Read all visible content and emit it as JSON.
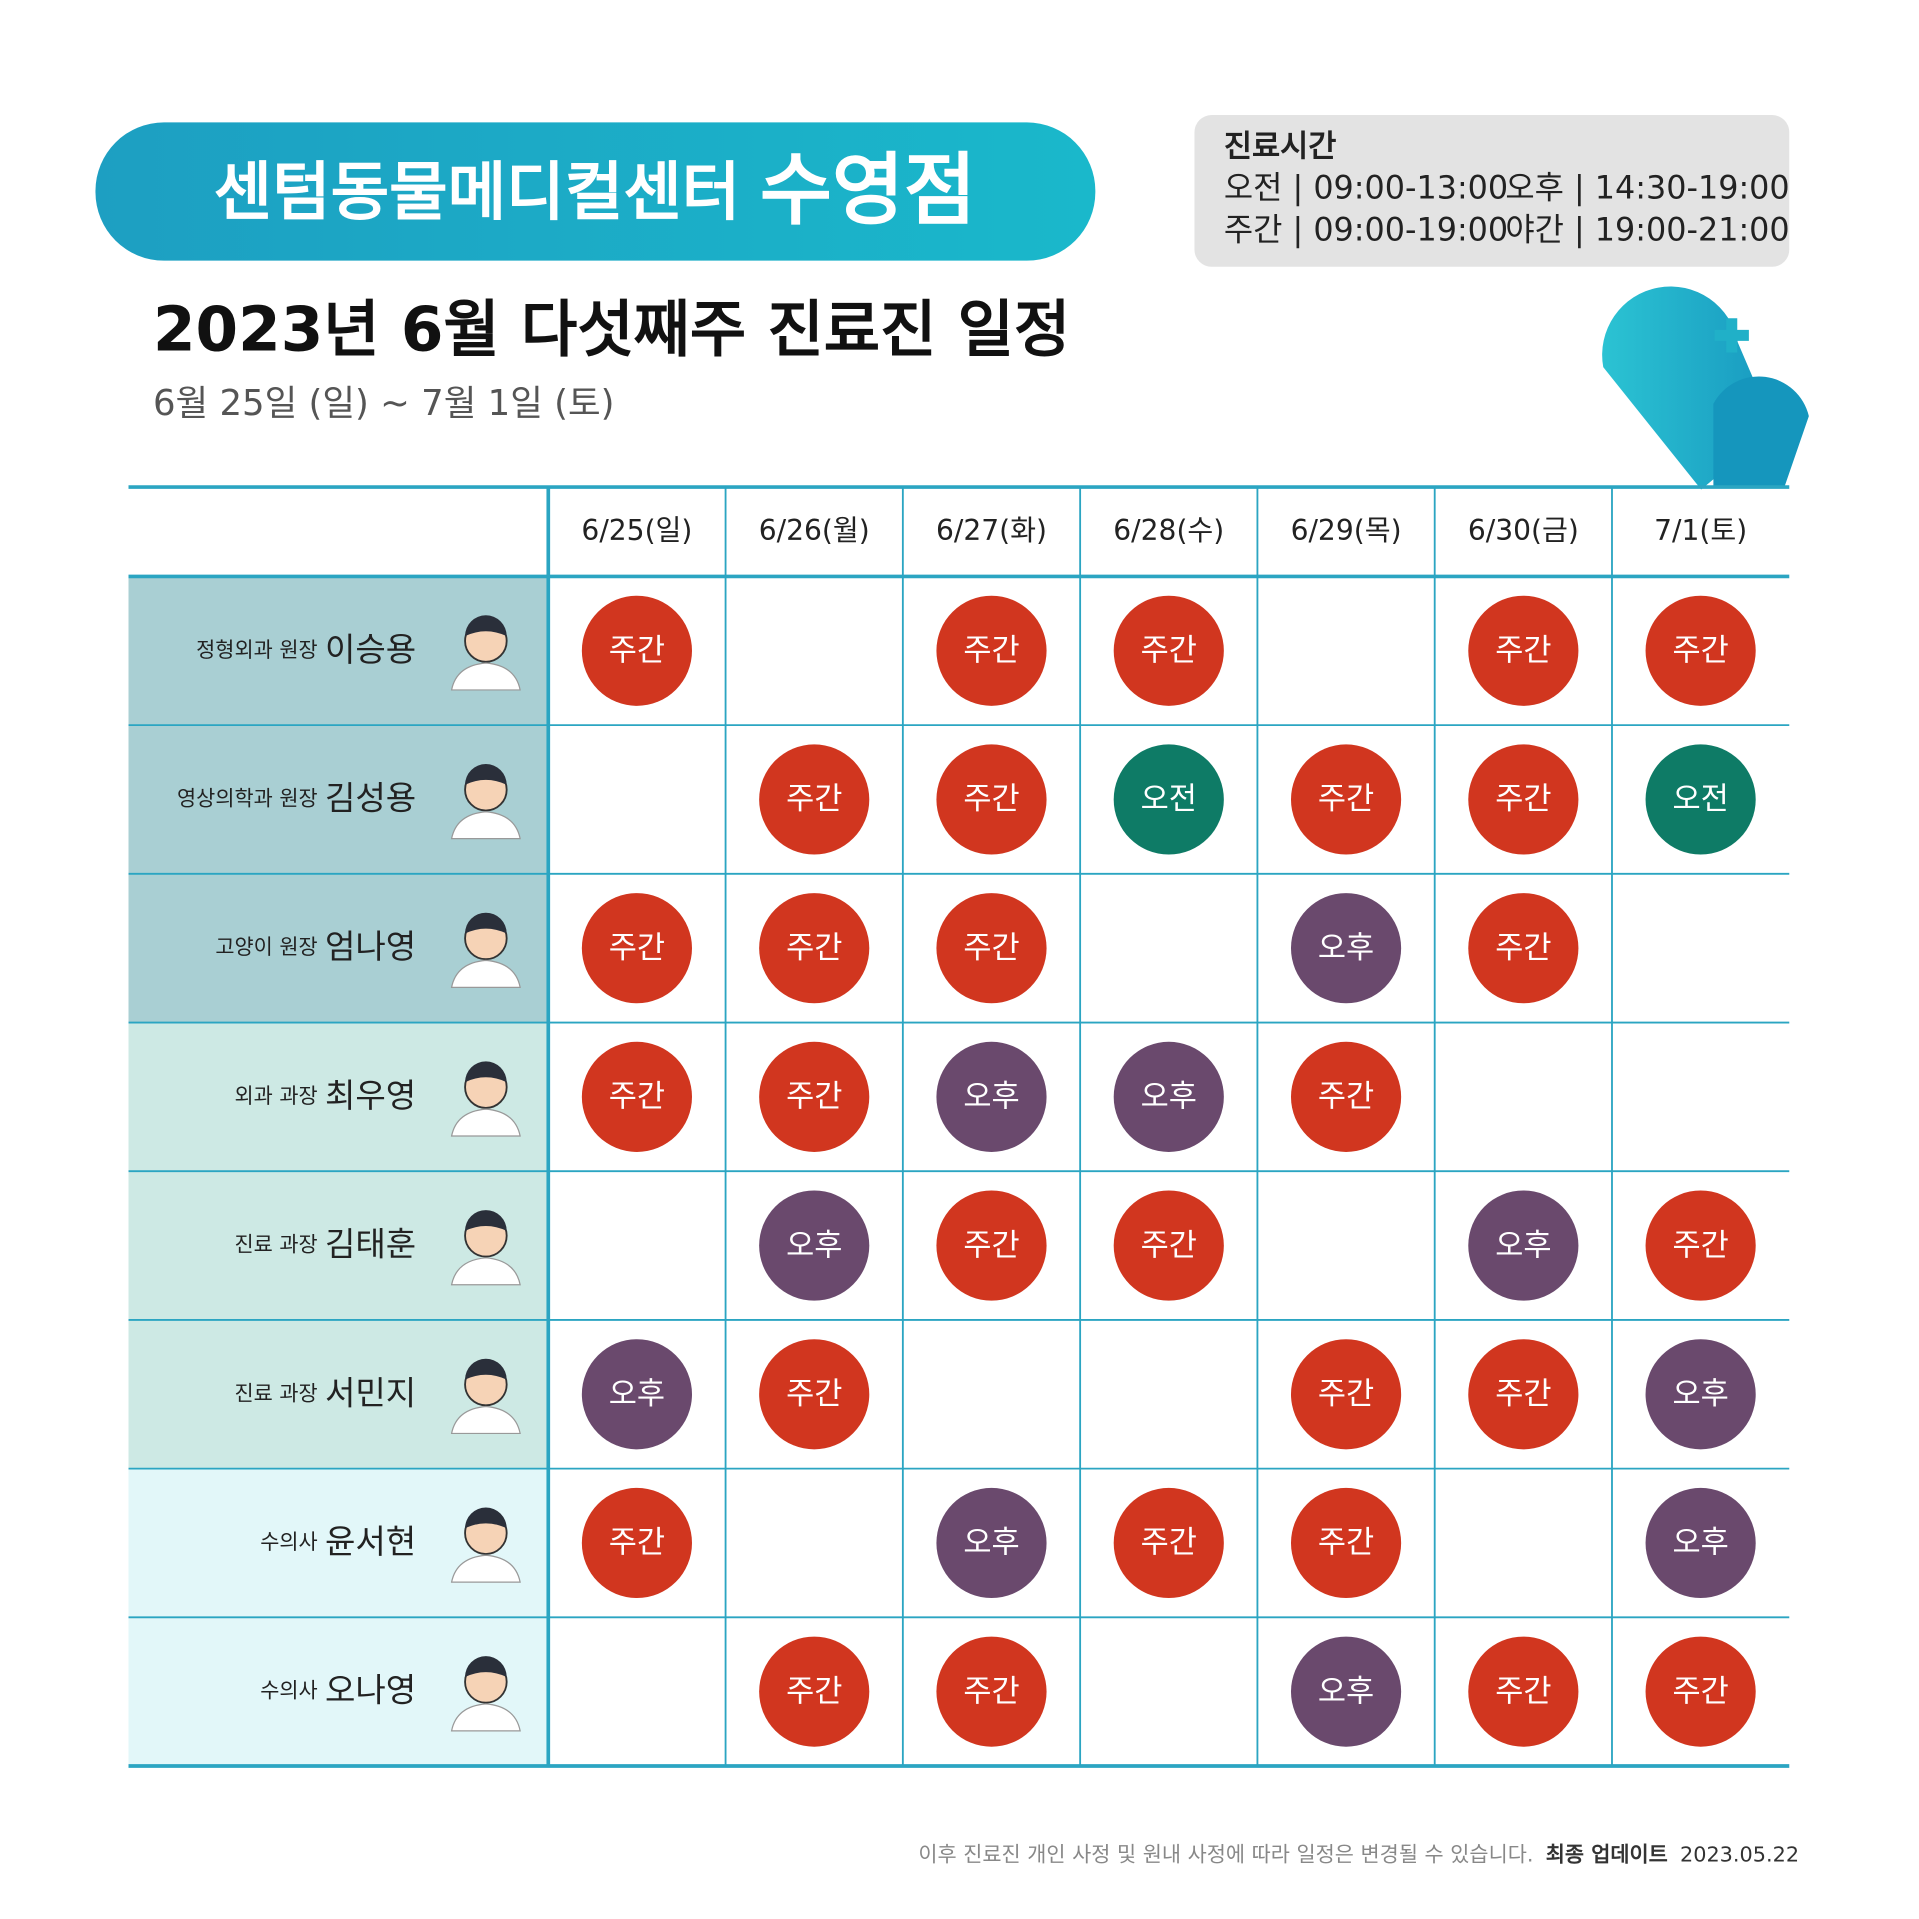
{
  "header": {
    "clinic": "센텀동물메디컬센터",
    "branch": "수영점",
    "title": "2023년 6월 다섯째주 진료진 일정",
    "period": "6월 25일 (일) ~ 7월 1일 (토)"
  },
  "hours": {
    "title": "진료시간",
    "items": [
      "오전 | 09:00-13:00",
      "오후 | 14:30-19:00",
      "주간 | 09:00-19:00",
      "야간 | 19:00-21:00"
    ]
  },
  "badge_colors": {
    "주간": "#d1361f",
    "오전": "#0e7b66",
    "오후": "#6a496d"
  },
  "table": {
    "dates": [
      "6/25(일)",
      "6/26(월)",
      "6/27(화)",
      "6/28(수)",
      "6/29(목)",
      "6/30(금)",
      "7/1(토)"
    ],
    "doctors": [
      {
        "role": "정형외과 원장",
        "name": "이승용",
        "cells": [
          "주간",
          null,
          "주간",
          "주간",
          null,
          "주간",
          "주간"
        ]
      },
      {
        "role": "영상의학과 원장",
        "name": "김성용",
        "cells": [
          null,
          "주간",
          "주간",
          "오전",
          "주간",
          "주간",
          "오전"
        ]
      },
      {
        "role": "고양이 원장",
        "name": "엄나영",
        "cells": [
          "주간",
          "주간",
          "주간",
          null,
          "오후",
          "주간",
          null
        ]
      },
      {
        "role": "외과 과장",
        "name": "최우영",
        "cells": [
          "주간",
          "주간",
          "오후",
          "오후",
          "주간",
          null,
          null
        ]
      },
      {
        "role": "진료 과장",
        "name": "김태훈",
        "cells": [
          null,
          "오후",
          "주간",
          "주간",
          null,
          "오후",
          "주간"
        ]
      },
      {
        "role": "진료 과장",
        "name": "서민지",
        "cells": [
          "오후",
          "주간",
          null,
          null,
          "주간",
          "주간",
          "오후"
        ]
      },
      {
        "role": "수의사",
        "name": "윤서현",
        "cells": [
          "주간",
          null,
          "오후",
          "주간",
          "주간",
          null,
          "오후"
        ]
      },
      {
        "role": "수의사",
        "name": "오나영",
        "cells": [
          null,
          "주간",
          "주간",
          null,
          "오후",
          "주간",
          "주간"
        ]
      }
    ]
  },
  "footer": {
    "note": "이후 진료진 개인 사정 및 원내 사정에 따라 일정은 변경될 수 있습니다.",
    "update_label": "최종 업데이트",
    "update_date": "2023.05.22"
  }
}
